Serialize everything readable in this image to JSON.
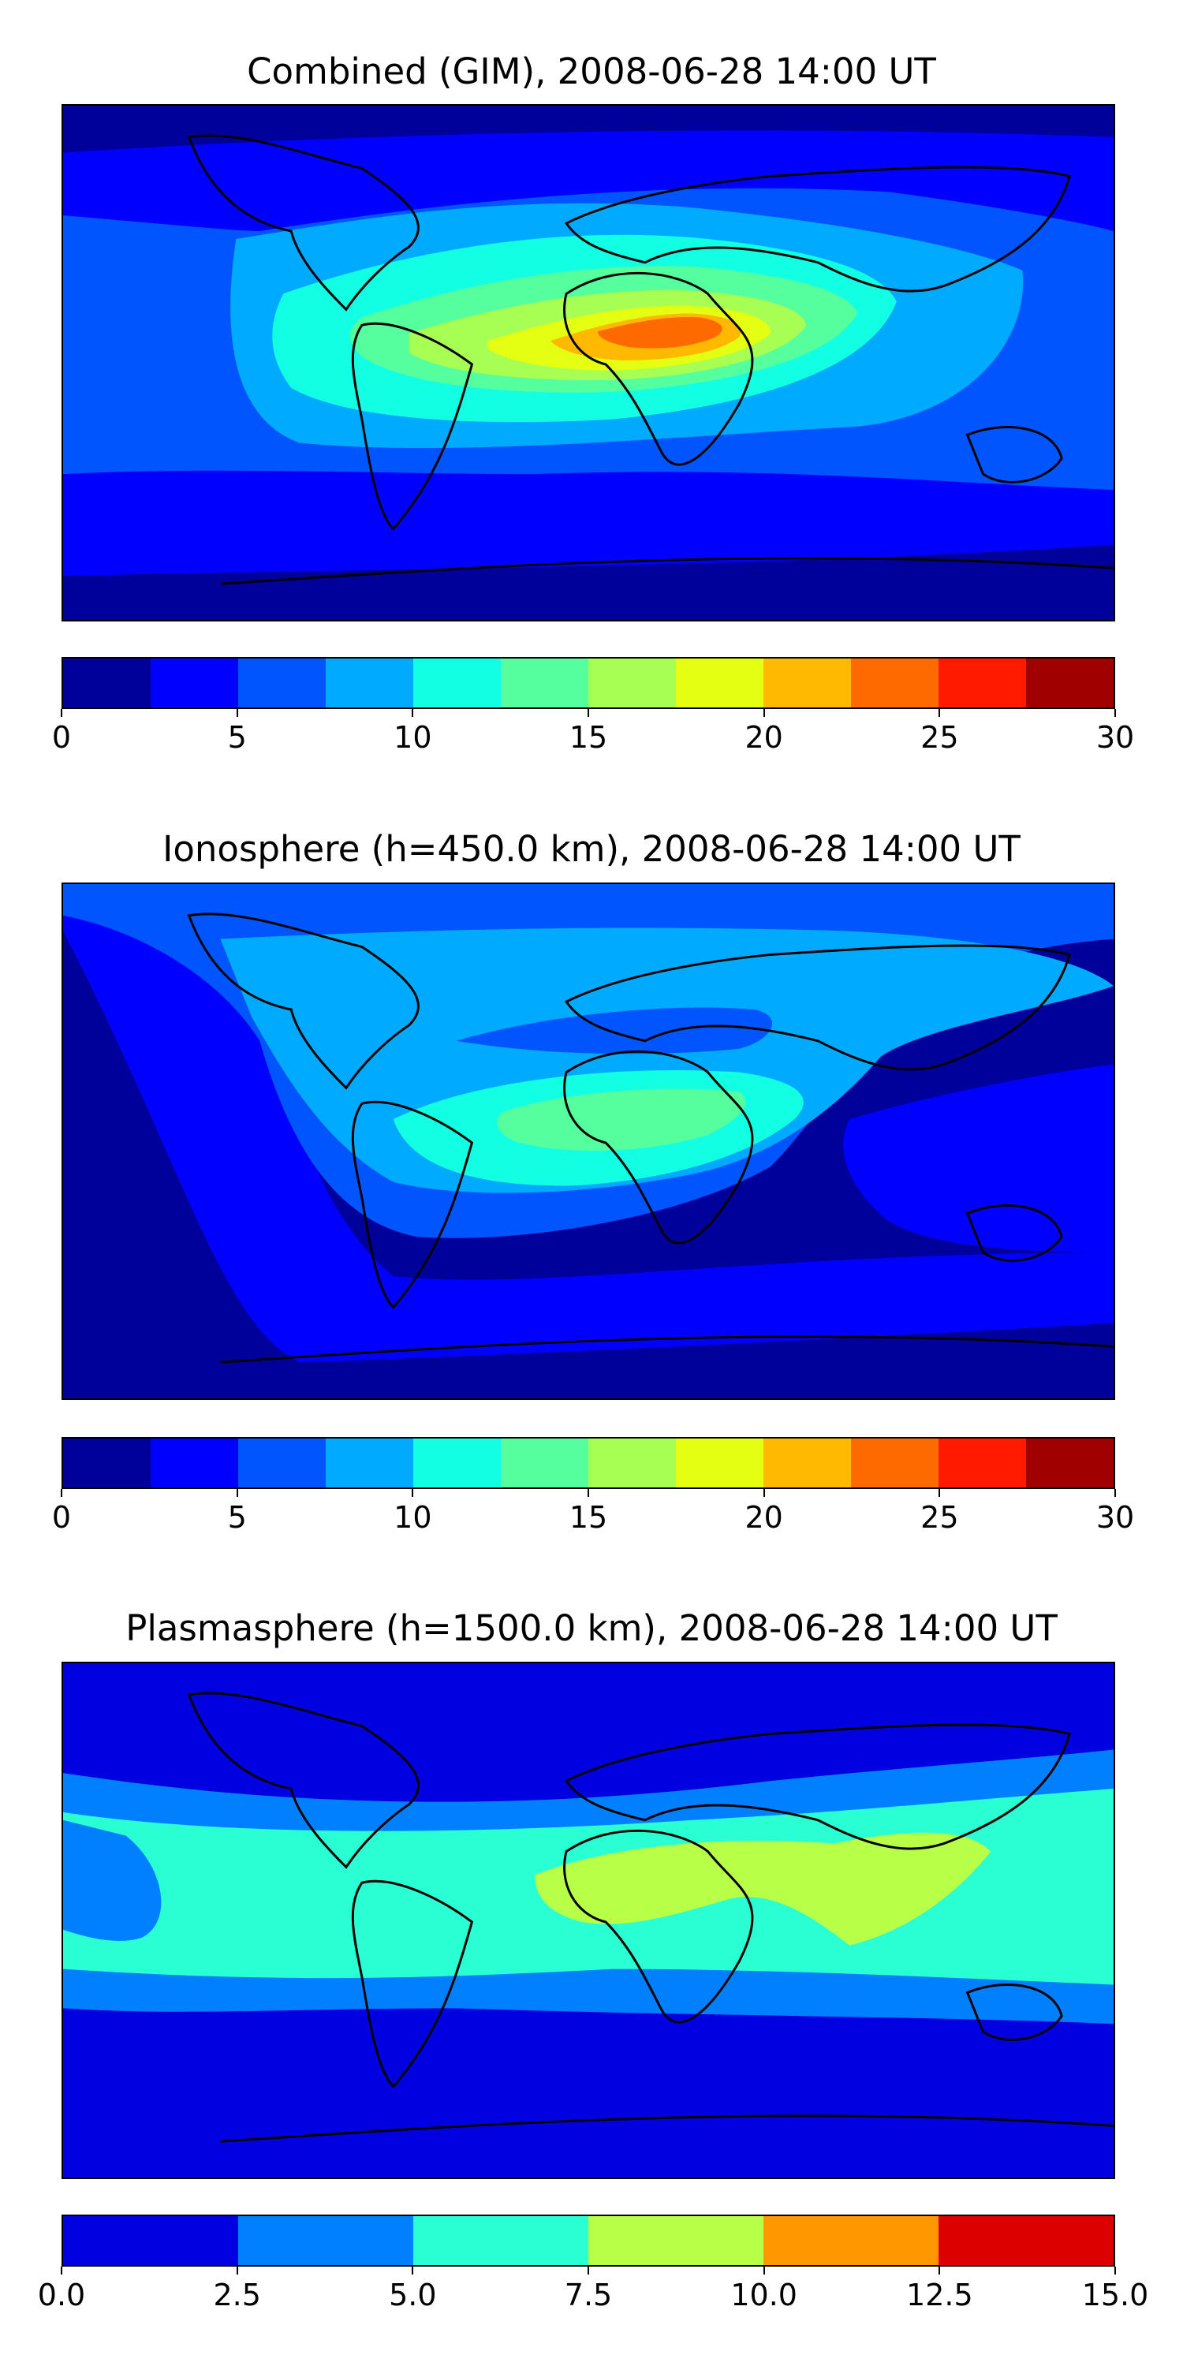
{
  "panels": [
    {
      "title": "Combined (GIM), 2008-06-28 14:00 UT",
      "background": "#00009a",
      "colorbar": {
        "colors": [
          "#00009a",
          "#0000ff",
          "#0055ff",
          "#00aaff",
          "#12ffe4",
          "#55ff9e",
          "#a6ff52",
          "#e4ff12",
          "#ffb900",
          "#ff6a00",
          "#ff1a00",
          "#a00000"
        ],
        "ticks": [
          "0",
          "5",
          "10",
          "15",
          "20",
          "25",
          "30"
        ]
      }
    },
    {
      "title": "Ionosphere  (h=450.0 km), 2008-06-28 14:00 UT",
      "background": "#00009a",
      "colorbar": {
        "colors": [
          "#00009a",
          "#0000ff",
          "#0055ff",
          "#00aaff",
          "#12ffe4",
          "#55ff9e",
          "#a6ff52",
          "#e4ff12",
          "#ffb900",
          "#ff6a00",
          "#ff1a00",
          "#a00000"
        ],
        "ticks": [
          "0",
          "5",
          "10",
          "15",
          "20",
          "25",
          "30"
        ]
      }
    },
    {
      "title": "Plasmasphere (h=1500.0 km), 2008-06-28 14:00 UT",
      "background": "#0000e0",
      "colorbar": {
        "colors": [
          "#0000e0",
          "#0080ff",
          "#2affd4",
          "#b8ff48",
          "#ff9800",
          "#dd0000"
        ],
        "ticks": [
          "0.0",
          "2.5",
          "5.0",
          "7.5",
          "10.0",
          "12.5",
          "15.0"
        ]
      }
    }
  ]
}
